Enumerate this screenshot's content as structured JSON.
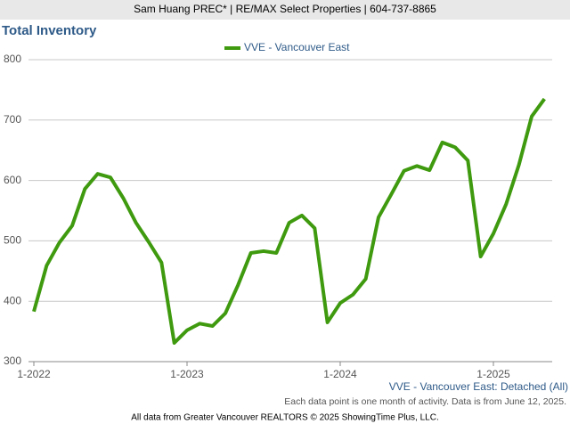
{
  "header": "Sam Huang PREC* | RE/MAX Select Properties | 604-737-8865",
  "chart_data": {
    "type": "line",
    "title": "Total Inventory",
    "subtitle": "VVE - Vancouver East: Detached (All)",
    "note": "Each data point is one month of activity. Data is from June 12, 2025.",
    "categories": [
      "1-2022",
      null,
      null,
      null,
      null,
      null,
      null,
      null,
      null,
      null,
      null,
      null,
      "1-2023",
      null,
      null,
      null,
      null,
      null,
      null,
      null,
      null,
      null,
      null,
      null,
      "1-2024",
      null,
      null,
      null,
      null,
      null,
      null,
      null,
      null,
      null,
      null,
      null,
      "1-2025",
      null,
      null,
      null,
      null
    ],
    "series": [
      {
        "name": "VVE - Vancouver East",
        "color": "#3f9a0f",
        "values": [
          383,
          459,
          497,
          525,
          586,
          611,
          605,
          571,
          530,
          498,
          464,
          331,
          352,
          363,
          359,
          380,
          427,
          480,
          483,
          480,
          530,
          542,
          521,
          365,
          397,
          411,
          437,
          539,
          577,
          616,
          624,
          617,
          663,
          655,
          633,
          474,
          512,
          561,
          626,
          706,
          735
        ]
      }
    ],
    "ylim": [
      300,
      800
    ],
    "yticks": [
      300,
      400,
      500,
      600,
      700,
      800
    ],
    "grid": true,
    "legend": "top"
  },
  "footer": "All data from Greater Vancouver REALTORS © 2025 ShowingTime Plus, LLC."
}
